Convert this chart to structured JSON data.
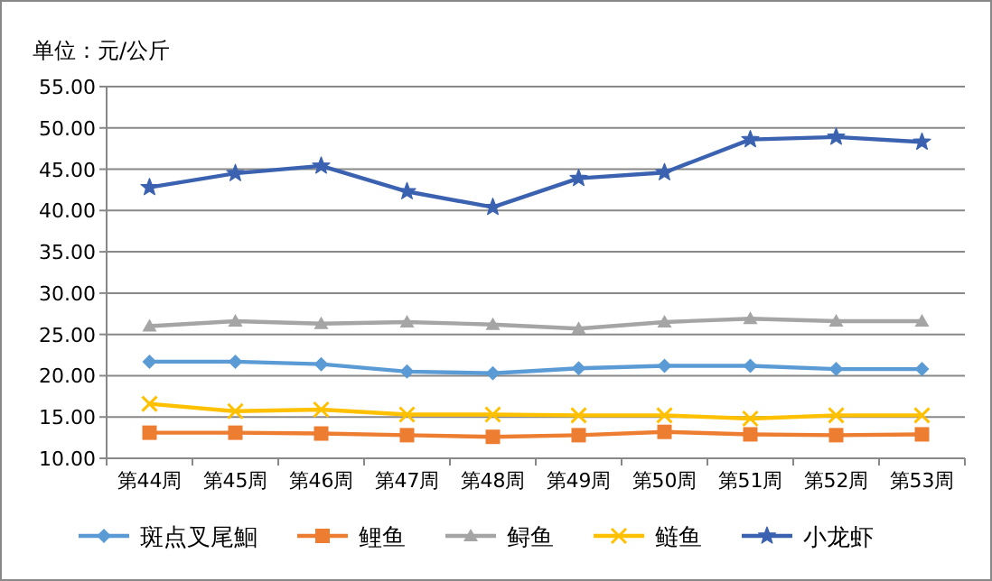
{
  "chart_data": {
    "type": "line",
    "title": "单位：元/公斤",
    "categories": [
      "第44周",
      "第45周",
      "第46周",
      "第47周",
      "第48周",
      "第49周",
      "第50周",
      "第51周",
      "第52周",
      "第53周"
    ],
    "series": [
      {
        "name": "斑点叉尾鮰",
        "color": "#5b9bd5",
        "marker": "diamond",
        "values": [
          21.7,
          21.7,
          21.4,
          20.5,
          20.3,
          20.9,
          21.2,
          21.2,
          20.8,
          20.8
        ]
      },
      {
        "name": "鲤鱼",
        "color": "#ed7d31",
        "marker": "square",
        "values": [
          13.1,
          13.1,
          13.0,
          12.8,
          12.6,
          12.8,
          13.2,
          12.9,
          12.8,
          12.9
        ]
      },
      {
        "name": "鲟鱼",
        "color": "#a5a5a5",
        "marker": "triangle",
        "values": [
          26.0,
          26.6,
          26.3,
          26.5,
          26.2,
          25.7,
          26.5,
          26.9,
          26.6,
          26.6
        ]
      },
      {
        "name": "鲢鱼",
        "color": "#ffc000",
        "marker": "cross",
        "values": [
          16.6,
          15.7,
          15.9,
          15.3,
          15.3,
          15.2,
          15.2,
          14.8,
          15.2,
          15.2
        ]
      },
      {
        "name": "小龙虾",
        "color": "#3b62b0",
        "marker": "star",
        "values": [
          42.8,
          44.5,
          45.4,
          42.3,
          40.4,
          43.9,
          44.6,
          48.6,
          48.9,
          48.3
        ]
      }
    ],
    "ylim": [
      10,
      55
    ],
    "yticks": [
      {
        "value": 10,
        "label": "10.00"
      },
      {
        "value": 15,
        "label": "15.00"
      },
      {
        "value": 20,
        "label": "20.00"
      },
      {
        "value": 25,
        "label": "25.00"
      },
      {
        "value": 30,
        "label": "30.00"
      },
      {
        "value": 35,
        "label": "35.00"
      },
      {
        "value": 40,
        "label": "40.00"
      },
      {
        "value": 45,
        "label": "45.00"
      },
      {
        "value": 50,
        "label": "50.00"
      },
      {
        "value": 55,
        "label": "55.00"
      }
    ],
    "grid": "y",
    "legend": "bottom",
    "line_style": "solid"
  }
}
